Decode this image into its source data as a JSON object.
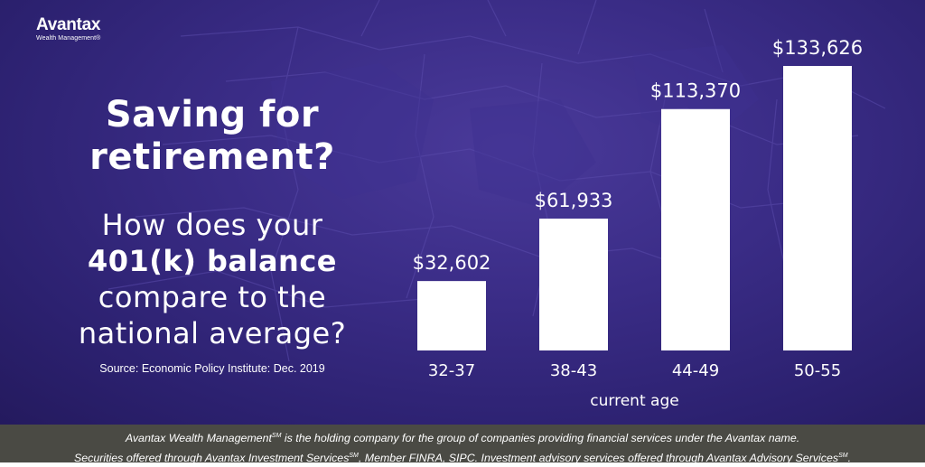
{
  "brand": {
    "name": "Avantax",
    "subtitle": "Wealth Management®"
  },
  "headline": "Saving for retirement?",
  "question": {
    "line1": "How does your",
    "line2_bold": "401(k) balance",
    "line3": "compare to the",
    "line4": "national average?"
  },
  "source": "Source: Economic Policy Institute: Dec. 2019",
  "colors": {
    "background": "#33267c",
    "bars": "#ffffff",
    "footer": "#4a4a44"
  },
  "chart_data": {
    "type": "bar",
    "categories": [
      "32-37",
      "38-43",
      "44-49",
      "50-55"
    ],
    "values": [
      32602,
      61933,
      113370,
      133626
    ],
    "value_labels": [
      "$32,602",
      "$61,933",
      "$113,370",
      "$133,626"
    ],
    "title": "",
    "xlabel": "current age",
    "ylabel": "",
    "ylim": [
      0,
      133626
    ],
    "grid": false,
    "legend": "none"
  },
  "footer": {
    "line1_pre": "Avantax Wealth Management",
    "line1_sup": "SM",
    "line1_post": " is the holding company for the group of companies providing financial services under the Avantax name.",
    "line2_a": "Securities offered through Avantax Investment Services",
    "line2_sup1": "SM",
    "line2_b": ", Member FINRA, SIPC. Investment advisory services offered through Avantax Advisory Services",
    "line2_sup2": "SM",
    "line2_c": "."
  }
}
